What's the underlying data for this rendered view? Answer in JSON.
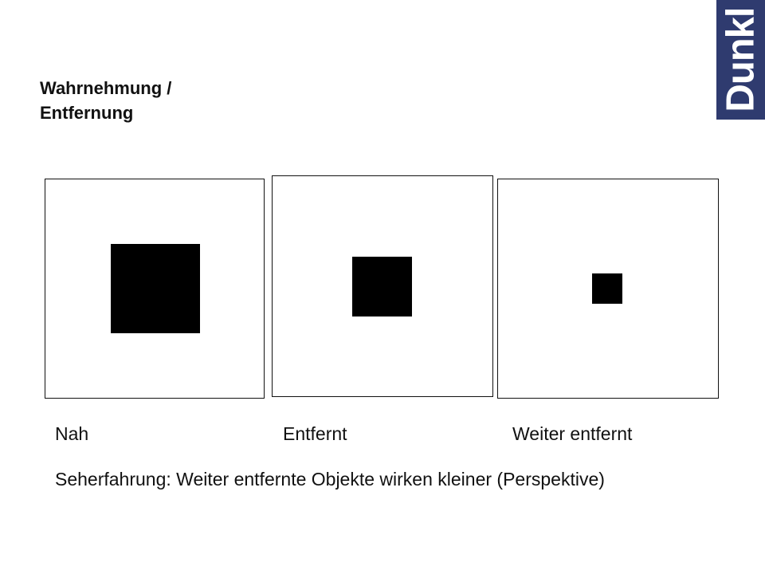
{
  "slide": {
    "title_line1": "Wahrnehmung /",
    "title_line2": "Entfernung",
    "logo_text": "Dunkl",
    "brand_color": "#2f3b6f",
    "panels": [
      {
        "label": "Nah",
        "relative_square_scale": 1.0
      },
      {
        "label": "Entfernt",
        "relative_square_scale": 0.66
      },
      {
        "label": "Weiter entfernt",
        "relative_square_scale": 0.33
      }
    ],
    "note": "Seherfahrung: Weiter entfernte Objekte wirken kleiner (Perspektive)"
  }
}
